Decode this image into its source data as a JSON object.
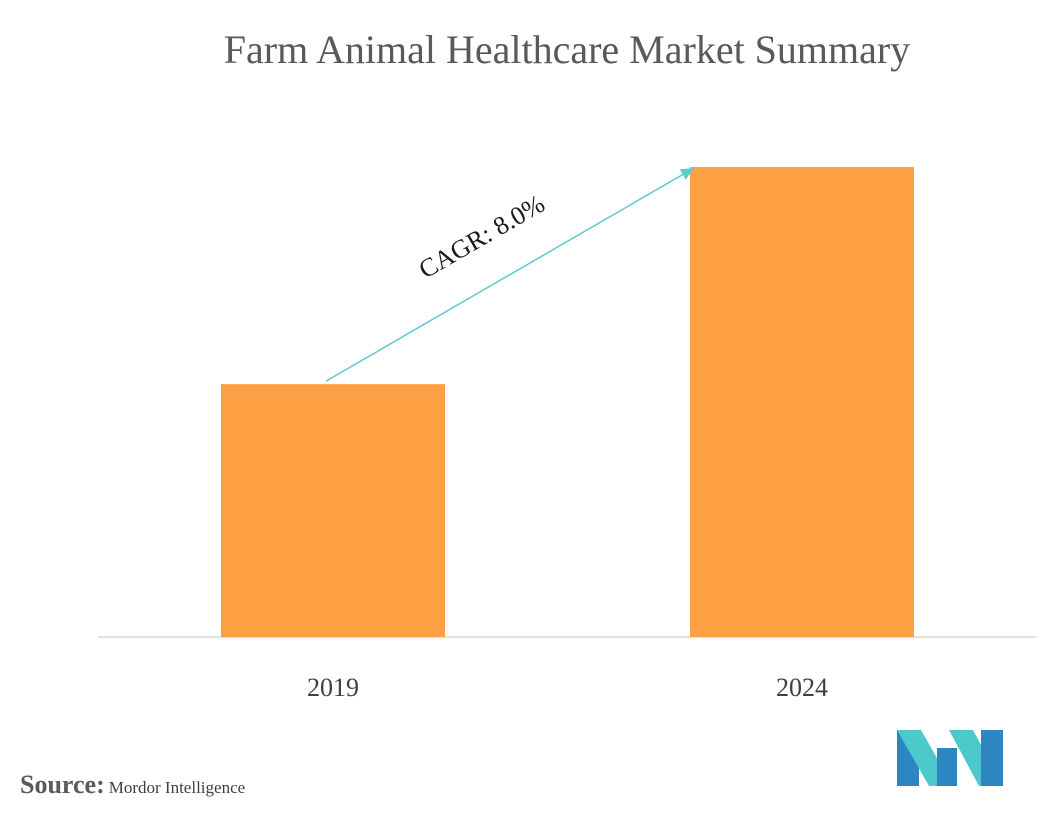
{
  "chart_data": {
    "type": "bar",
    "title": "Farm Animal Healthcare Market Summary",
    "categories": [
      "2019",
      "2024"
    ],
    "values": [
      53.8,
      100
    ],
    "ylim": [
      0,
      100
    ],
    "grid": false,
    "axis_labels_visible": false,
    "bar_color": "#FDA044",
    "annotation": {
      "text": "CAGR: 8.0%",
      "color": "#5BCBD0"
    }
  },
  "source": {
    "label": "Source:",
    "value": "Mordor Intelligence"
  },
  "logo": {
    "name": "mordor-intelligence-logo",
    "colors": [
      "#2E86C1",
      "#4DC9CC"
    ]
  }
}
